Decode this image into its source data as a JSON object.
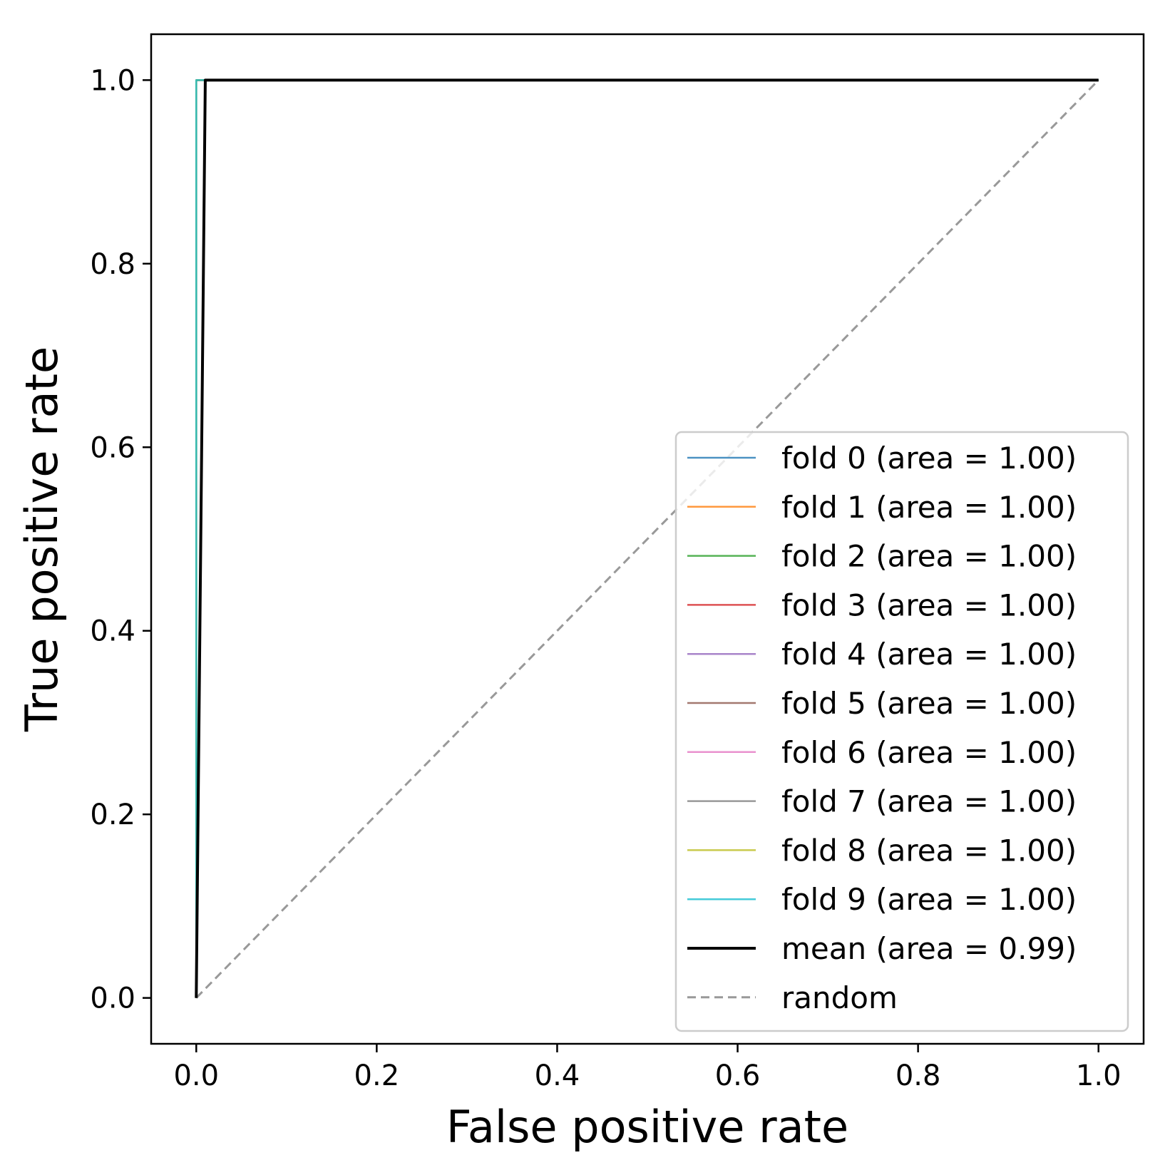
{
  "chart_data": {
    "type": "line",
    "title": "",
    "xlabel": "False positive rate",
    "ylabel": "True positive rate",
    "xlim": [
      -0.05,
      1.05
    ],
    "ylim": [
      -0.05,
      1.05
    ],
    "xticks": [
      "0.0",
      "0.2",
      "0.4",
      "0.6",
      "0.8",
      "1.0"
    ],
    "yticks": [
      "0.0",
      "0.2",
      "0.4",
      "0.6",
      "0.8",
      "1.0"
    ],
    "grid": false,
    "legend_position": "lower-right",
    "series": [
      {
        "name": "fold 0 (area = 1.00)",
        "color": "#1f77b4",
        "style": "solid",
        "x": [
          0,
          0,
          1
        ],
        "y": [
          0,
          1,
          1
        ]
      },
      {
        "name": "fold 1 (area = 1.00)",
        "color": "#ff7f0e",
        "style": "solid",
        "x": [
          0,
          0,
          1
        ],
        "y": [
          0,
          1,
          1
        ]
      },
      {
        "name": "fold 2 (area = 1.00)",
        "color": "#2ca02c",
        "style": "solid",
        "x": [
          0,
          0,
          1
        ],
        "y": [
          0,
          1,
          1
        ]
      },
      {
        "name": "fold 3 (area = 1.00)",
        "color": "#d62728",
        "style": "solid",
        "x": [
          0,
          0,
          1
        ],
        "y": [
          0,
          1,
          1
        ]
      },
      {
        "name": "fold 4 (area = 1.00)",
        "color": "#9467bd",
        "style": "solid",
        "x": [
          0,
          0,
          1
        ],
        "y": [
          0,
          1,
          1
        ]
      },
      {
        "name": "fold 5 (area = 1.00)",
        "color": "#8c564b",
        "style": "solid",
        "x": [
          0,
          0,
          1
        ],
        "y": [
          0,
          1,
          1
        ]
      },
      {
        "name": "fold 6 (area = 1.00)",
        "color": "#e377c2",
        "style": "solid",
        "x": [
          0,
          0,
          1
        ],
        "y": [
          0,
          1,
          1
        ]
      },
      {
        "name": "fold 7 (area = 1.00)",
        "color": "#7f7f7f",
        "style": "solid",
        "x": [
          0,
          0,
          1
        ],
        "y": [
          0,
          1,
          1
        ]
      },
      {
        "name": "fold 8 (area = 1.00)",
        "color": "#bcbd22",
        "style": "solid",
        "x": [
          0,
          0,
          1
        ],
        "y": [
          0,
          1,
          1
        ]
      },
      {
        "name": "fold 9 (area = 1.00)",
        "color": "#17becf",
        "style": "solid",
        "x": [
          0,
          0,
          1
        ],
        "y": [
          0,
          1,
          1
        ]
      },
      {
        "name": "mean (area = 0.99)",
        "color": "#000000",
        "style": "mean",
        "x": [
          0,
          0.01,
          1
        ],
        "y": [
          0,
          1,
          1
        ]
      },
      {
        "name": "random",
        "color": "#999999",
        "style": "dashed",
        "x": [
          0,
          1
        ],
        "y": [
          0,
          1
        ]
      }
    ]
  }
}
